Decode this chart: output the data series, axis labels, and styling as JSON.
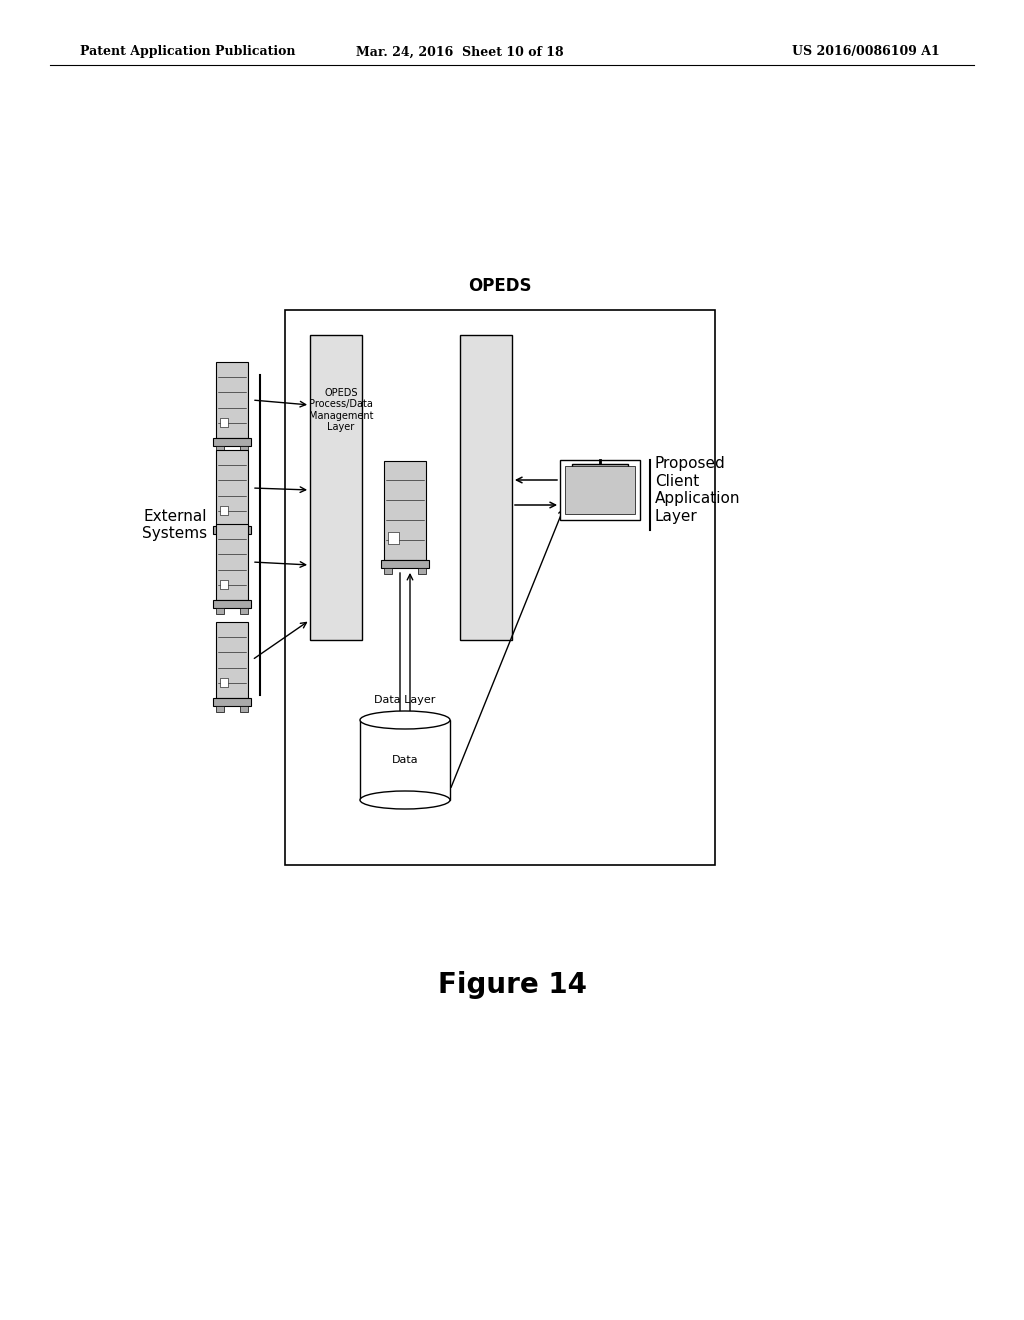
{
  "bg_color": "#ffffff",
  "header_left": "Patent Application Publication",
  "header_center": "Mar. 24, 2016  Sheet 10 of 18",
  "header_right": "US 2016/0086109 A1",
  "figure_label": "Figure 14",
  "opeds_label": "OPEDS",
  "opeds_process_label": "OPEDS\nProcess/Data\nManagement\nLayer",
  "data_layer_label": "Data Layer",
  "data_label": "Data",
  "external_systems_label": "External\nSystems",
  "proposed_client_label": "Proposed\nClient\nApplication\nLayer"
}
